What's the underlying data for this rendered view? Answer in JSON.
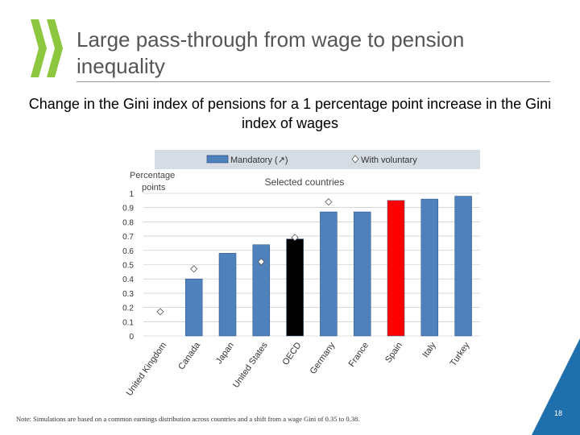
{
  "slide": {
    "title": "Large pass-through from wage to pension inequality",
    "subtitle": "Change in the Gini index of pensions for a 1 percentage point increase in the Gini index of wages",
    "note": "Note: Simulations are based on a common earnings distribution across countries and a shift from a wage Gini of 0.35 to 0.38.",
    "page_number": "18"
  },
  "colors": {
    "mandatory": "#4f81bd",
    "highlight_oecd": "#000000",
    "highlight_spain": "#ff0000",
    "legend_bg": "#d6dce4",
    "corner": "#1f6fad",
    "logo": "#8dc63f"
  },
  "chart_data": {
    "type": "bar",
    "title": "Selected countries",
    "ylabel": "Percentage points",
    "ylim": [
      0,
      1
    ],
    "yticks": [
      "0",
      "0.1",
      "0.2",
      "0.3",
      "0.4",
      "0.5",
      "0.6",
      "0.7",
      "0.8",
      "0.9",
      "1"
    ],
    "categories": [
      "United Kingdom",
      "Canada",
      "Japan",
      "United States",
      "OECD",
      "Germany",
      "France",
      "Spain",
      "Italy",
      "Turkey"
    ],
    "legend": [
      "Mandatory (↗)",
      "With voluntary"
    ],
    "series": [
      {
        "name": "Mandatory (↗)",
        "values": [
          0,
          0.4,
          0.58,
          0.64,
          0.68,
          0.87,
          0.87,
          0.95,
          0.96,
          0.98
        ]
      },
      {
        "name": "With voluntary",
        "values": [
          0.17,
          0.47,
          null,
          0.52,
          0.69,
          0.94,
          null,
          null,
          null,
          null
        ]
      }
    ],
    "bar_colors": [
      "mandatory",
      "mandatory",
      "mandatory",
      "mandatory",
      "highlight_oecd",
      "mandatory",
      "mandatory",
      "highlight_spain",
      "mandatory",
      "mandatory"
    ]
  }
}
